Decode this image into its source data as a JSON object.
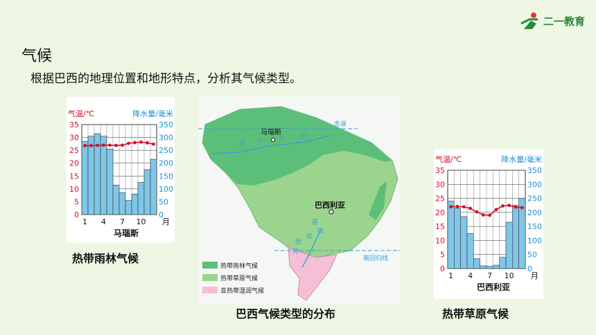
{
  "brand": {
    "name": "二一教育",
    "accent": "#2a8a3a"
  },
  "header": {
    "title": "气候",
    "subtitle": "根据巴西的地理位置和地形特点，分析其气候类型。"
  },
  "map": {
    "caption": "巴西气候类型的分布",
    "places": {
      "manaus": "马瑙斯",
      "brasilia": "巴西利亚"
    },
    "lines": {
      "equator": "赤道",
      "tropic": "南回归线"
    },
    "river_labels": [
      "亚",
      "马",
      "孙",
      "河",
      "拉",
      "普",
      "拉",
      "他",
      "河"
    ],
    "legend": [
      {
        "label": "热带雨林气候",
        "color": "#5cbf79"
      },
      {
        "label": "热带草原气候",
        "color": "#9bd48c"
      },
      {
        "label": "亚热带湿润气候",
        "color": "#f6bfd6"
      }
    ]
  },
  "chart_data": [
    {
      "type": "bar",
      "title": "马瑙斯",
      "caption": "热带雨林气候",
      "y_left_label": "气温/℃",
      "y_right_label": "降水量/毫米",
      "x_ticks": [
        "1",
        "4",
        "7",
        "10"
      ],
      "x_unit": "月",
      "y_left_ticks": [
        "0",
        "5",
        "10",
        "15",
        "20",
        "25",
        "30",
        "35"
      ],
      "y_right_ticks": [
        "0",
        "50",
        "100",
        "150",
        "200",
        "250",
        "300",
        "350"
      ],
      "ylim_left": [
        0,
        35
      ],
      "ylim_right": [
        0,
        350
      ],
      "categories": [
        1,
        2,
        3,
        4,
        5,
        6,
        7,
        8,
        9,
        10,
        11,
        12
      ],
      "precipitation": [
        285,
        305,
        315,
        305,
        255,
        115,
        85,
        55,
        80,
        125,
        175,
        215
      ],
      "temperature": [
        26.8,
        26.8,
        26.9,
        27.0,
        27.0,
        26.9,
        27.0,
        27.7,
        28.0,
        28.2,
        27.9,
        27.4
      ],
      "bar_color": "#7fc6e8",
      "line_color": "#d0112b"
    },
    {
      "type": "bar",
      "title": "巴西利亚",
      "caption": "热带草原气候",
      "y_left_label": "气温/℃",
      "y_right_label": "降水量/毫米",
      "x_ticks": [
        "1",
        "4",
        "7",
        "10"
      ],
      "x_unit": "月",
      "y_left_ticks": [
        "0",
        "5",
        "10",
        "15",
        "20",
        "25",
        "30",
        "35"
      ],
      "y_right_ticks": [
        "0",
        "50",
        "100",
        "150",
        "200",
        "250",
        "300",
        "350"
      ],
      "ylim_left": [
        0,
        35
      ],
      "ylim_right": [
        0,
        350
      ],
      "categories": [
        1,
        2,
        3,
        4,
        5,
        6,
        7,
        8,
        9,
        10,
        11,
        12
      ],
      "precipitation": [
        240,
        215,
        185,
        125,
        35,
        10,
        8,
        12,
        40,
        165,
        225,
        250
      ],
      "temperature": [
        22.0,
        22.1,
        22.0,
        21.4,
        20.2,
        19.1,
        19.0,
        21.0,
        22.3,
        22.5,
        21.9,
        21.7
      ],
      "bar_color": "#7fc6e8",
      "line_color": "#d0112b"
    }
  ]
}
